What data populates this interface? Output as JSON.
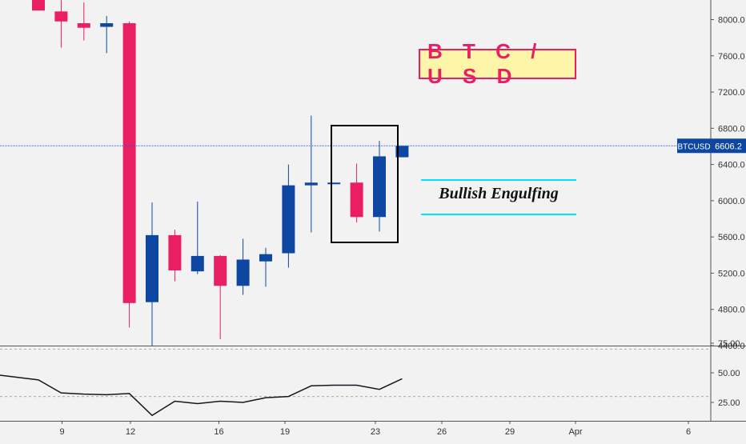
{
  "chart_data": [
    {
      "type": "candlestick",
      "symbol": "BTC/USD",
      "x_tick_labels": [
        "9",
        "12",
        "16",
        "19",
        "23",
        "26",
        "29",
        "Apr",
        "6"
      ],
      "y_tick_labels": [
        "8000.0",
        "7600.0",
        "7200.0",
        "6800.0",
        "6400.0",
        "6000.0",
        "5600.0",
        "5200.0",
        "4800.0",
        "4400.0"
      ],
      "ylim": [
        4380,
        8220
      ],
      "last_price_label": "BTCUSD",
      "last_price": "6606.2",
      "annotations": {
        "title": "B T C / U S D",
        "pattern": "Bullish Engulfing"
      },
      "colors": {
        "up": "#0d47a1",
        "down": "#e91e63",
        "price_line": "#1e5bd8",
        "highlight_line": "#00e5ff"
      },
      "candles": [
        {
          "x": 8,
          "open": 8220,
          "high": 8220,
          "low": 8100,
          "close": 8100
        },
        {
          "x": 9,
          "open": 8090,
          "high": 8220,
          "low": 7690,
          "close": 7980
        },
        {
          "x": 10,
          "open": 7960,
          "high": 8190,
          "low": 7770,
          "close": 7910
        },
        {
          "x": 11,
          "open": 7920,
          "high": 8040,
          "low": 7630,
          "close": 7960
        },
        {
          "x": 12,
          "open": 7960,
          "high": 7980,
          "low": 4600,
          "close": 4870
        },
        {
          "x": 13,
          "open": 4880,
          "high": 5980,
          "low": 4390,
          "close": 5620
        },
        {
          "x": 14,
          "open": 5620,
          "high": 5680,
          "low": 5110,
          "close": 5230
        },
        {
          "x": 15,
          "open": 5220,
          "high": 5990,
          "low": 5190,
          "close": 5390
        },
        {
          "x": 16,
          "open": 5390,
          "high": 5400,
          "low": 4470,
          "close": 5060
        },
        {
          "x": 17,
          "open": 5060,
          "high": 5580,
          "low": 4960,
          "close": 5350
        },
        {
          "x": 18,
          "open": 5330,
          "high": 5480,
          "low": 5050,
          "close": 5410
        },
        {
          "x": 19,
          "open": 5420,
          "high": 6400,
          "low": 5260,
          "close": 6170
        },
        {
          "x": 20,
          "open": 6170,
          "high": 6940,
          "low": 5650,
          "close": 6200
        },
        {
          "x": 21,
          "open": 6200,
          "high": 6200,
          "low": 6200,
          "close": 6200
        },
        {
          "x": 22,
          "open": 6200,
          "high": 6410,
          "low": 5760,
          "close": 5820
        },
        {
          "x": 23,
          "open": 5820,
          "high": 6660,
          "low": 5660,
          "close": 6490
        },
        {
          "x": 24,
          "open": 6480,
          "high": 6610,
          "low": 6480,
          "close": 6606
        }
      ]
    },
    {
      "type": "line",
      "y_tick_labels": [
        "75.00",
        "50.00",
        "25.00"
      ],
      "ylim": [
        10,
        78
      ],
      "dashed_levels": [
        70,
        30
      ],
      "color": "#131722",
      "x": [
        7,
        8,
        9,
        10,
        11,
        12,
        13,
        14,
        15,
        16,
        17,
        18,
        19,
        20,
        21,
        22,
        23,
        24
      ],
      "y": [
        48,
        44,
        33,
        32,
        31.5,
        32.5,
        14,
        26,
        24,
        26,
        25,
        29,
        30,
        39,
        39.5,
        39.5,
        36,
        45
      ]
    }
  ]
}
